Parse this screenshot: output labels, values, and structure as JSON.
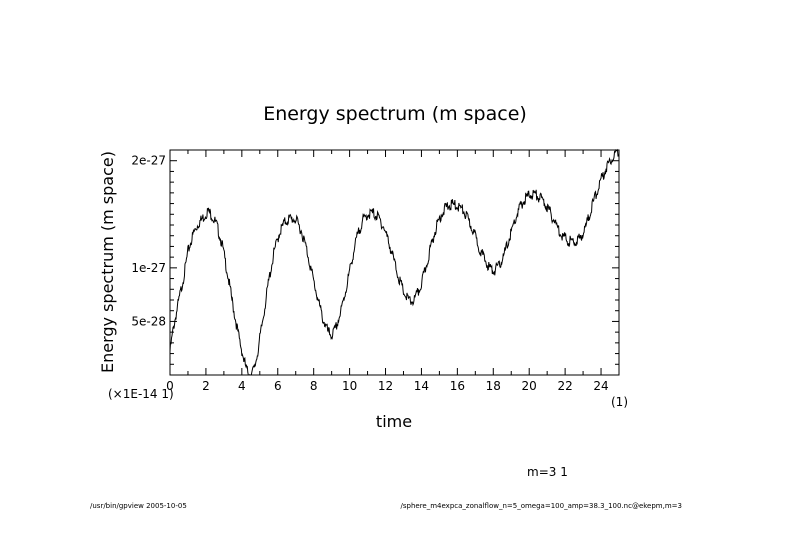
{
  "chart_data": {
    "type": "line",
    "title": "Energy spectrum (m space)",
    "xlabel": "time",
    "ylabel": "Energy spectrum (m space)",
    "xlim": [
      0,
      25
    ],
    "ylim": [
      0,
      2.1e-27
    ],
    "x_ticks": [
      0,
      2,
      4,
      6,
      8,
      10,
      12,
      14,
      16,
      18,
      20,
      22,
      24
    ],
    "x_tick_labels": [
      "0",
      "2",
      "4",
      "6",
      "8",
      "10",
      "12",
      "14",
      "16",
      "18",
      "20",
      "22",
      "24"
    ],
    "y_ticks": [
      5e-28,
      1e-27,
      2e-27
    ],
    "y_tick_labels": [
      "5e-28",
      "1e-27",
      "2e-27"
    ],
    "x_scale_note": "(×1E-14 1)",
    "x_unit_note": "(1)",
    "legend": "m=3 1",
    "series": [
      {
        "name": "m=3 1",
        "x": [
          0,
          0.2,
          0.5,
          0.8,
          1.0,
          1.3,
          1.6,
          1.9,
          2.1,
          2.3,
          2.6,
          2.9,
          3.2,
          3.5,
          3.8,
          4.1,
          4.3,
          4.5,
          4.7,
          4.9,
          5.2,
          5.5,
          5.8,
          6.1,
          6.4,
          6.7,
          7.0,
          7.3,
          7.6,
          7.9,
          8.2,
          8.5,
          8.8,
          9.0,
          9.2,
          9.5,
          9.8,
          10.1,
          10.4,
          10.7,
          11.0,
          11.3,
          11.6,
          11.9,
          12.2,
          12.5,
          12.8,
          13.1,
          13.4,
          13.6,
          13.9,
          14.2,
          14.5,
          14.8,
          15.1,
          15.4,
          15.7,
          16.0,
          16.3,
          16.6,
          16.9,
          17.2,
          17.5,
          17.8,
          18.0,
          18.3,
          18.6,
          18.9,
          19.2,
          19.5,
          19.8,
          20.1,
          20.4,
          20.7,
          21.0,
          21.3,
          21.6,
          21.9,
          22.2,
          22.5,
          22.8,
          23.1,
          23.4,
          23.7,
          24.0,
          24.3,
          24.6,
          25.0
        ],
        "values": [
          2.2e-28,
          4.5e-28,
          7e-28,
          9.5e-28,
          1.15e-27,
          1.32e-27,
          1.42e-27,
          1.48e-27,
          1.53e-27,
          1.5e-27,
          1.4e-27,
          1.22e-27,
          9.5e-28,
          6.5e-28,
          3.8e-28,
          1.5e-28,
          3e-29,
          0.0,
          6e-29,
          2.3e-28,
          5.5e-28,
          8.8e-28,
          1.15e-27,
          1.33e-27,
          1.43e-27,
          1.46e-27,
          1.45e-27,
          1.35e-27,
          1.18e-27,
          9.5e-28,
          7.3e-28,
          5.3e-28,
          4e-28,
          3.7e-28,
          4.2e-28,
          5.8e-28,
          8e-28,
          1.05e-27,
          1.28e-27,
          1.43e-27,
          1.5e-27,
          1.51e-27,
          1.47e-27,
          1.38e-27,
          1.23e-27,
          1.05e-27,
          8.7e-28,
          7.4e-28,
          6.8e-28,
          7e-28,
          8e-28,
          9.7e-28,
          1.18e-27,
          1.37e-27,
          1.5e-27,
          1.57e-27,
          1.59e-27,
          1.58e-27,
          1.54e-27,
          1.45e-27,
          1.34e-27,
          1.2e-27,
          1.08e-27,
          1e-27,
          9.7e-28,
          1.01e-27,
          1.12e-27,
          1.28e-27,
          1.44e-27,
          1.57e-27,
          1.65e-27,
          1.69e-27,
          1.68e-27,
          1.64e-27,
          1.57e-27,
          1.47e-27,
          1.37e-27,
          1.29e-27,
          1.25e-27,
          1.24e-27,
          1.27e-27,
          1.36e-27,
          1.52e-27,
          1.68e-27,
          1.82e-27,
          1.94e-27,
          2.03e-27,
          2.1e-27
        ]
      }
    ]
  },
  "footer": {
    "left": "/usr/bin/gpview  2005-10-05",
    "right": "/sphere_m4expca_zonalflow_n=5_omega=100_amp=38.3_100.nc@ekepm,m=3"
  }
}
